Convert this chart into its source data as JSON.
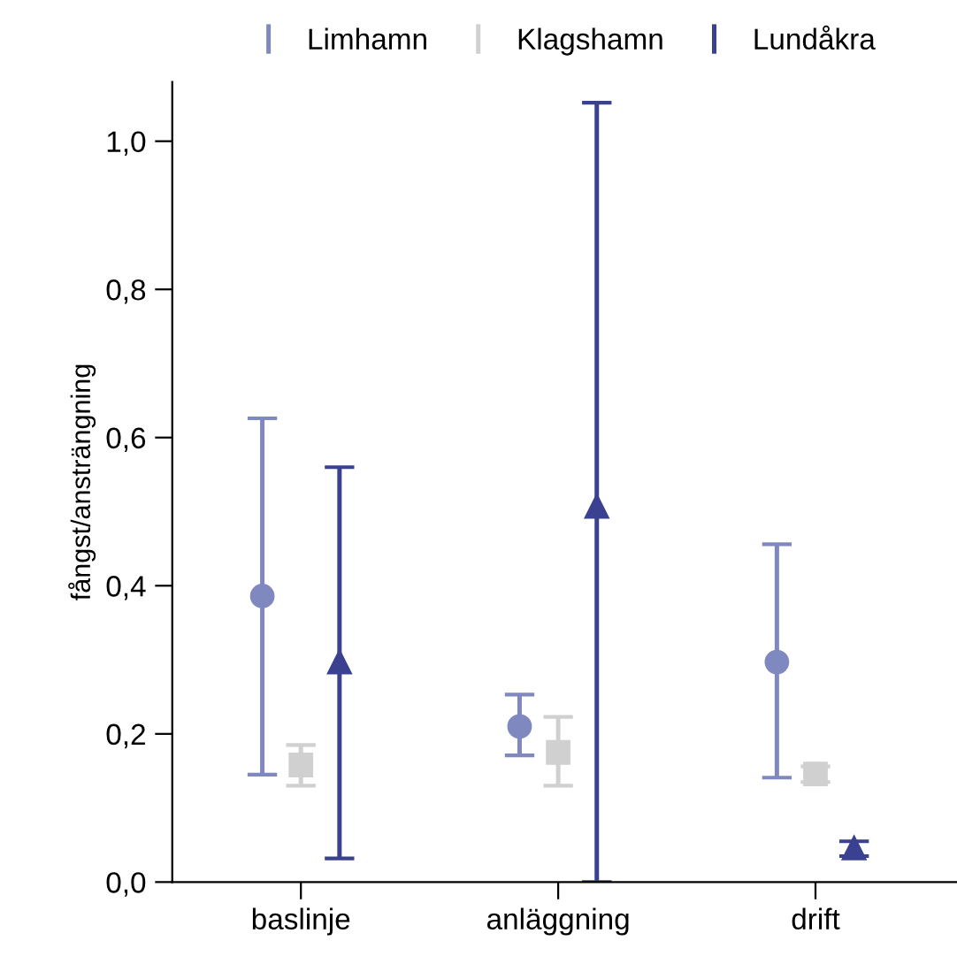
{
  "chart_data": {
    "type": "scatter",
    "ylabel": "fångst/ansträngning",
    "categories": [
      "baslinje",
      "anläggning",
      "drift"
    ],
    "series": [
      {
        "name": "Limhamn",
        "color": "#8088c0",
        "marker": "circle",
        "values": [
          0.386,
          0.21,
          0.297
        ],
        "errors": [
          [
            0.145,
            0.626
          ],
          [
            0.171,
            0.253
          ],
          [
            0.141,
            0.456
          ]
        ]
      },
      {
        "name": "Klagshamn",
        "color": "#d0d0d0",
        "marker": "square",
        "values": [
          0.158,
          0.175,
          0.146
        ],
        "errors": [
          [
            0.13,
            0.185
          ],
          [
            0.13,
            0.223
          ],
          [
            0.135,
            0.156
          ]
        ]
      },
      {
        "name": "Lundåkra",
        "color": "#3a4190",
        "marker": "triangle",
        "values": [
          0.297,
          0.507,
          0.046
        ],
        "errors": [
          [
            0.032,
            0.56
          ],
          [
            0.0,
            1.052
          ],
          [
            0.035,
            0.055
          ]
        ]
      }
    ],
    "ylim": [
      0,
      1.08
    ],
    "yticks": [
      {
        "value": 0,
        "label": "0,0"
      },
      {
        "value": 0.2,
        "label": "0,2"
      },
      {
        "value": 0.4,
        "label": "0,4"
      },
      {
        "value": 0.6,
        "label": "0,6"
      },
      {
        "value": 0.8,
        "label": "0,8"
      },
      {
        "value": 1.0,
        "label": "1,0"
      }
    ],
    "legend": "top",
    "grid": false
  }
}
